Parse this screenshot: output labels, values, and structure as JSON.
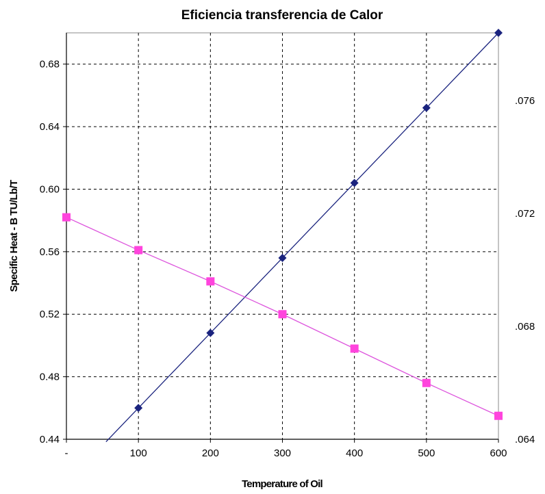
{
  "chart_data": {
    "type": "line",
    "title": "Eficiencia transferencia de Calor",
    "xlabel": "Temperature of Oil",
    "ylabel": "Specific Heat - B TU/Lb/T",
    "xlim": [
      0,
      600
    ],
    "ylim": [
      0.44,
      0.7
    ],
    "x_ticks": [
      0,
      100,
      200,
      300,
      400,
      500,
      600
    ],
    "x_tick_labels": [
      "-",
      "100",
      "200",
      "300",
      "400",
      "500",
      "600"
    ],
    "y_ticks": [
      0.44,
      0.48,
      0.52,
      0.56,
      0.6,
      0.64,
      0.68
    ],
    "y_tick_labels": [
      "0.44",
      "0.48",
      "0.52",
      "0.56",
      "0.60",
      "0.64",
      "0.68"
    ],
    "y2_ticks": [
      0.064,
      0.068,
      0.072,
      0.076
    ],
    "y2_tick_labels": [
      ".064",
      ".068",
      ".072",
      ".076"
    ],
    "y2lim": [
      0.064,
      0.0784
    ],
    "grid": true,
    "series": [
      {
        "color": "#1a237e",
        "marker": "diamond",
        "axis": "left",
        "x": [
          100,
          200,
          300,
          400,
          500,
          600
        ],
        "y": [
          0.46,
          0.508,
          0.556,
          0.604,
          0.652,
          0.7
        ],
        "trend_extends_to_x": 55
      },
      {
        "color": "#ff44dd",
        "line_color": "#dd55dd",
        "marker": "square",
        "axis": "left",
        "x": [
          0,
          100,
          200,
          300,
          400,
          500,
          600
        ],
        "y": [
          0.582,
          0.561,
          0.541,
          0.52,
          0.498,
          0.476,
          0.455
        ]
      }
    ]
  }
}
